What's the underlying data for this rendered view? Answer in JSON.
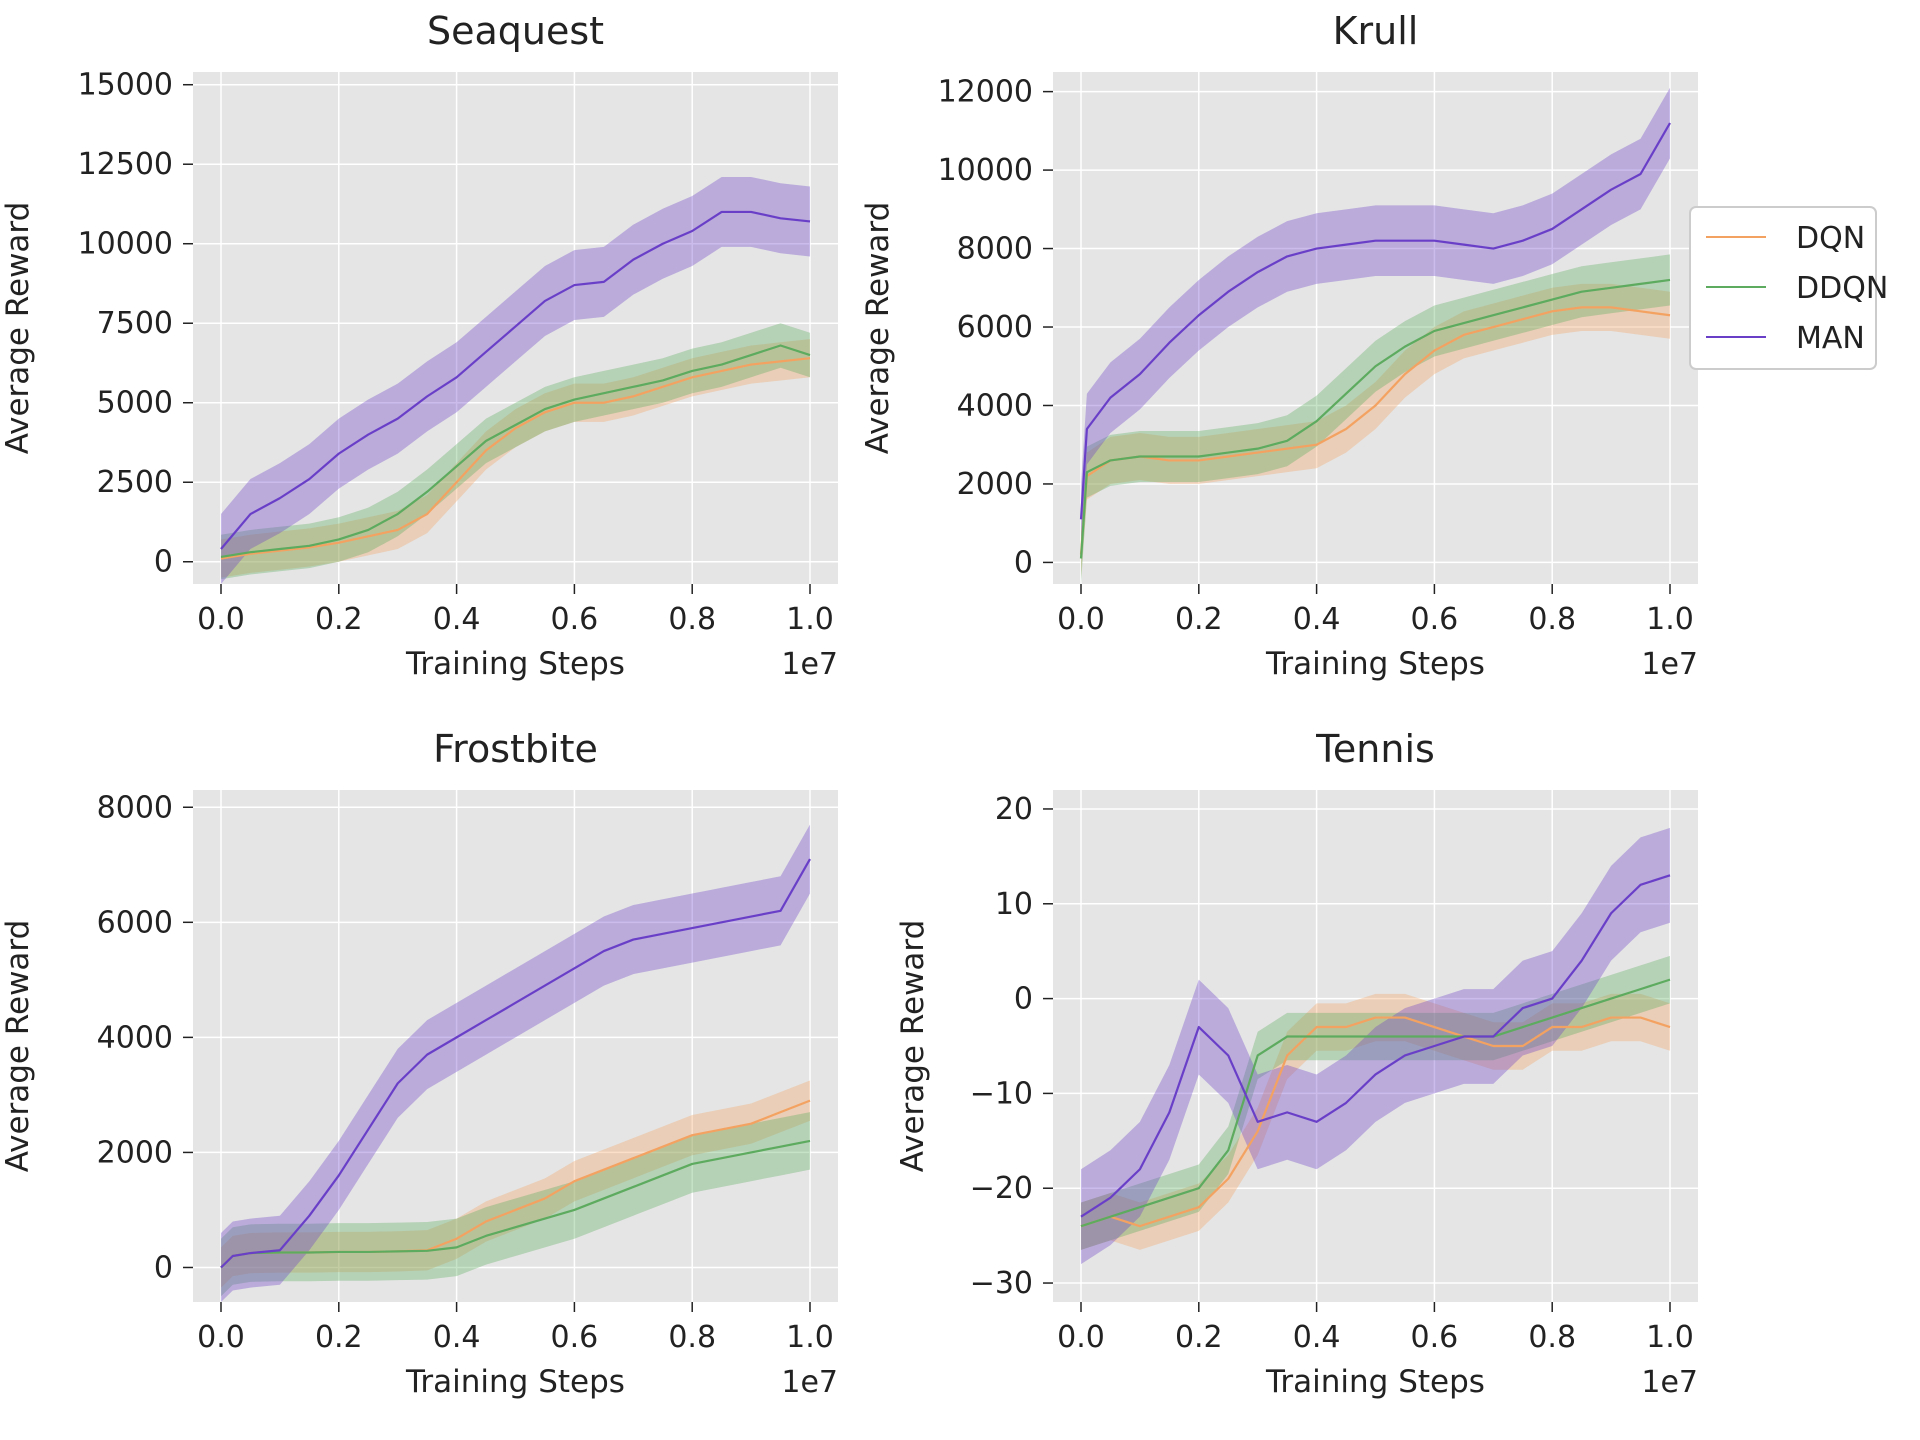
{
  "legend": {
    "items": [
      {
        "label": "DQN",
        "color": "#f4a261"
      },
      {
        "label": "DDQN",
        "color": "#5dab5f"
      },
      {
        "label": "MAN",
        "color": "#6a3fc8"
      }
    ]
  },
  "colors": {
    "DQN": "#f4a261",
    "DDQN": "#5dab5f",
    "MAN": "#6a3fc8",
    "panel_bg": "#e5e5e5",
    "grid": "#ffffff"
  },
  "chart_data": [
    {
      "type": "line",
      "title": "Seaquest",
      "xlabel": "Training Steps",
      "ylabel": "Average Reward",
      "x_multiplier": "1e7",
      "xlim": [
        0,
        1.0
      ],
      "ylim": [
        -700,
        15400
      ],
      "xticks": [
        0.0,
        0.2,
        0.4,
        0.6,
        0.8,
        1.0
      ],
      "xtick_labels": [
        "0.0",
        "0.2",
        "0.4",
        "0.6",
        "0.8",
        "1.0"
      ],
      "yticks": [
        0,
        2500,
        5000,
        7500,
        10000,
        12500,
        15000
      ],
      "ytick_labels": [
        "0",
        "2500",
        "5000",
        "7500",
        "10000",
        "12500",
        "15000"
      ],
      "grid": true,
      "series": [
        {
          "name": "DQN",
          "x": [
            0,
            0.05,
            0.1,
            0.15,
            0.2,
            0.25,
            0.3,
            0.35,
            0.4,
            0.45,
            0.5,
            0.55,
            0.6,
            0.65,
            0.7,
            0.75,
            0.8,
            0.85,
            0.9,
            0.95,
            1.0
          ],
          "y": [
            100,
            250,
            350,
            450,
            600,
            800,
            1000,
            1500,
            2500,
            3500,
            4200,
            4700,
            5000,
            5000,
            5200,
            5500,
            5800,
            6000,
            6200,
            6300,
            6400
          ],
          "band": 600
        },
        {
          "name": "DDQN",
          "x": [
            0,
            0.05,
            0.1,
            0.15,
            0.2,
            0.25,
            0.3,
            0.35,
            0.4,
            0.45,
            0.5,
            0.55,
            0.6,
            0.65,
            0.7,
            0.75,
            0.8,
            0.85,
            0.9,
            0.95,
            1.0
          ],
          "y": [
            150,
            300,
            400,
            500,
            700,
            1000,
            1500,
            2200,
            3000,
            3800,
            4300,
            4800,
            5100,
            5300,
            5500,
            5700,
            6000,
            6200,
            6500,
            6800,
            6500
          ],
          "band": 700
        },
        {
          "name": "MAN",
          "x": [
            0,
            0.05,
            0.1,
            0.15,
            0.2,
            0.25,
            0.3,
            0.35,
            0.4,
            0.45,
            0.5,
            0.55,
            0.6,
            0.65,
            0.7,
            0.75,
            0.8,
            0.85,
            0.9,
            0.95,
            1.0
          ],
          "y": [
            400,
            1500,
            2000,
            2600,
            3400,
            4000,
            4500,
            5200,
            5800,
            6600,
            7400,
            8200,
            8700,
            8800,
            9500,
            10000,
            10400,
            11000,
            11000,
            10800,
            10700
          ],
          "band": 1100
        }
      ]
    },
    {
      "type": "line",
      "title": "Krull",
      "xlabel": "Training Steps",
      "ylabel": "Average Reward",
      "x_multiplier": "1e7",
      "xlim": [
        0,
        1.0
      ],
      "ylim": [
        -550,
        12500
      ],
      "xticks": [
        0.0,
        0.2,
        0.4,
        0.6,
        0.8,
        1.0
      ],
      "xtick_labels": [
        "0.0",
        "0.2",
        "0.4",
        "0.6",
        "0.8",
        "1.0"
      ],
      "yticks": [
        0,
        2000,
        4000,
        6000,
        8000,
        10000,
        12000
      ],
      "ytick_labels": [
        "0",
        "2000",
        "4000",
        "6000",
        "8000",
        "10000",
        "12000"
      ],
      "grid": true,
      "series": [
        {
          "name": "DQN",
          "x": [
            0,
            0.01,
            0.05,
            0.1,
            0.15,
            0.2,
            0.25,
            0.3,
            0.35,
            0.4,
            0.45,
            0.5,
            0.55,
            0.6,
            0.65,
            0.7,
            0.75,
            0.8,
            0.85,
            0.9,
            0.95,
            1.0
          ],
          "y": [
            200,
            2200,
            2600,
            2700,
            2600,
            2600,
            2700,
            2800,
            2900,
            3000,
            3400,
            4000,
            4800,
            5400,
            5800,
            6000,
            6200,
            6400,
            6500,
            6500,
            6400,
            6300
          ],
          "band": 600
        },
        {
          "name": "DDQN",
          "x": [
            0,
            0.01,
            0.05,
            0.1,
            0.15,
            0.2,
            0.25,
            0.3,
            0.35,
            0.4,
            0.45,
            0.5,
            0.55,
            0.6,
            0.65,
            0.7,
            0.75,
            0.8,
            0.85,
            0.9,
            0.95,
            1.0
          ],
          "y": [
            100,
            2300,
            2600,
            2700,
            2700,
            2700,
            2800,
            2900,
            3100,
            3600,
            4300,
            5000,
            5500,
            5900,
            6100,
            6300,
            6500,
            6700,
            6900,
            7000,
            7100,
            7200
          ],
          "band": 650
        },
        {
          "name": "MAN",
          "x": [
            0,
            0.01,
            0.05,
            0.1,
            0.15,
            0.2,
            0.25,
            0.3,
            0.35,
            0.4,
            0.45,
            0.5,
            0.55,
            0.6,
            0.65,
            0.7,
            0.75,
            0.8,
            0.85,
            0.9,
            0.95,
            1.0
          ],
          "y": [
            1100,
            3400,
            4200,
            4800,
            5600,
            6300,
            6900,
            7400,
            7800,
            8000,
            8100,
            8200,
            8200,
            8200,
            8100,
            8000,
            8200,
            8500,
            9000,
            9500,
            9900,
            11200
          ],
          "band": 900
        }
      ]
    },
    {
      "type": "line",
      "title": "Frostbite",
      "xlabel": "Training Steps",
      "ylabel": "Average Reward",
      "x_multiplier": "1e7",
      "xlim": [
        0,
        1.0
      ],
      "ylim": [
        -600,
        8300
      ],
      "xticks": [
        0.0,
        0.2,
        0.4,
        0.6,
        0.8,
        1.0
      ],
      "xtick_labels": [
        "0.0",
        "0.2",
        "0.4",
        "0.6",
        "0.8",
        "1.0"
      ],
      "yticks": [
        0,
        2000,
        4000,
        6000,
        8000
      ],
      "ytick_labels": [
        "0",
        "2000",
        "4000",
        "6000",
        "8000"
      ],
      "grid": true,
      "series": [
        {
          "name": "DQN",
          "x": [
            0,
            0.02,
            0.05,
            0.1,
            0.15,
            0.2,
            0.25,
            0.3,
            0.35,
            0.4,
            0.45,
            0.5,
            0.55,
            0.6,
            0.65,
            0.7,
            0.75,
            0.8,
            0.85,
            0.9,
            0.95,
            1.0
          ],
          "y": [
            0,
            200,
            250,
            260,
            260,
            270,
            270,
            280,
            300,
            500,
            800,
            1000,
            1200,
            1500,
            1700,
            1900,
            2100,
            2300,
            2400,
            2500,
            2700,
            2900
          ],
          "band": 350
        },
        {
          "name": "DDQN",
          "x": [
            0,
            0.02,
            0.05,
            0.1,
            0.15,
            0.2,
            0.25,
            0.3,
            0.35,
            0.4,
            0.45,
            0.5,
            0.55,
            0.6,
            0.65,
            0.7,
            0.75,
            0.8,
            0.85,
            0.9,
            0.95,
            1.0
          ],
          "y": [
            0,
            200,
            250,
            260,
            260,
            270,
            270,
            280,
            290,
            350,
            550,
            700,
            850,
            1000,
            1200,
            1400,
            1600,
            1800,
            1900,
            2000,
            2100,
            2200
          ],
          "band": 500
        },
        {
          "name": "MAN",
          "x": [
            0,
            0.02,
            0.05,
            0.1,
            0.15,
            0.2,
            0.25,
            0.3,
            0.35,
            0.4,
            0.45,
            0.5,
            0.55,
            0.6,
            0.65,
            0.7,
            0.75,
            0.8,
            0.85,
            0.9,
            0.95,
            1.0
          ],
          "y": [
            0,
            200,
            250,
            300,
            900,
            1600,
            2400,
            3200,
            3700,
            4000,
            4300,
            4600,
            4900,
            5200,
            5500,
            5700,
            5800,
            5900,
            6000,
            6100,
            6200,
            7100
          ],
          "band": 600
        }
      ]
    },
    {
      "type": "line",
      "title": "Tennis",
      "xlabel": "Training Steps",
      "ylabel": "Average Reward",
      "x_multiplier": "1e7",
      "xlim": [
        0,
        1.0
      ],
      "ylim": [
        -32,
        22
      ],
      "xticks": [
        0.0,
        0.2,
        0.4,
        0.6,
        0.8,
        1.0
      ],
      "xtick_labels": [
        "0.0",
        "0.2",
        "0.4",
        "0.6",
        "0.8",
        "1.0"
      ],
      "yticks": [
        -30,
        -20,
        -10,
        0,
        10,
        20
      ],
      "ytick_labels": [
        "−30",
        "−20",
        "−10",
        "0",
        "10",
        "20"
      ],
      "grid": true,
      "series": [
        {
          "name": "DQN",
          "x": [
            0,
            0.05,
            0.1,
            0.15,
            0.2,
            0.25,
            0.3,
            0.35,
            0.4,
            0.45,
            0.5,
            0.55,
            0.6,
            0.65,
            0.7,
            0.75,
            0.8,
            0.85,
            0.9,
            0.95,
            1.0
          ],
          "y": [
            -24,
            -23,
            -24,
            -23,
            -22,
            -19,
            -14,
            -6,
            -3,
            -3,
            -2,
            -2,
            -3,
            -4,
            -5,
            -5,
            -3,
            -3,
            -2,
            -2,
            -3
          ],
          "band": 2.5
        },
        {
          "name": "DDQN",
          "x": [
            0,
            0.05,
            0.1,
            0.15,
            0.2,
            0.25,
            0.3,
            0.35,
            0.4,
            0.45,
            0.5,
            0.55,
            0.6,
            0.65,
            0.7,
            0.75,
            0.8,
            0.85,
            0.9,
            0.95,
            1.0
          ],
          "y": [
            -24,
            -23,
            -22,
            -21,
            -20,
            -16,
            -6,
            -4,
            -4,
            -4,
            -4,
            -4,
            -4,
            -4,
            -4,
            -3,
            -2,
            -1,
            0,
            1,
            2
          ],
          "band": 2.5
        },
        {
          "name": "MAN",
          "x": [
            0,
            0.05,
            0.1,
            0.15,
            0.2,
            0.25,
            0.3,
            0.35,
            0.4,
            0.45,
            0.5,
            0.55,
            0.6,
            0.65,
            0.7,
            0.75,
            0.8,
            0.85,
            0.9,
            0.95,
            1.0
          ],
          "y": [
            -23,
            -21,
            -18,
            -12,
            -3,
            -6,
            -13,
            -12,
            -13,
            -11,
            -8,
            -6,
            -5,
            -4,
            -4,
            -1,
            0,
            4,
            9,
            12,
            13
          ],
          "band": 5
        }
      ]
    }
  ]
}
